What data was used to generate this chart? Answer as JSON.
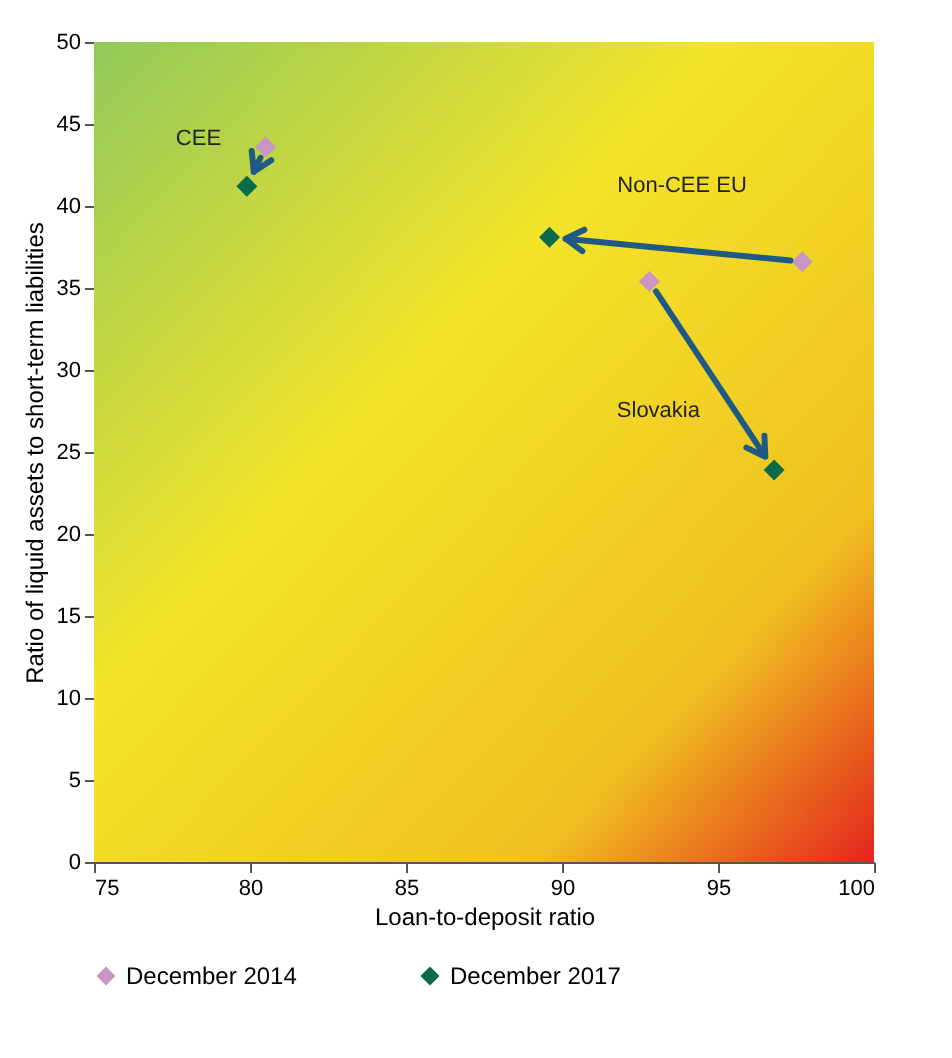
{
  "chart_data": {
    "type": "scatter",
    "xlabel": "Loan-to-deposit ratio",
    "ylabel": "Ratio of liquid assets to short-term liabilities",
    "series": [
      {
        "name": "December 2014",
        "color": "#c895c4",
        "x": [
          80.5,
          97.7,
          92.8
        ],
        "values": [
          43.6,
          36.6,
          35.4
        ]
      },
      {
        "name": "December 2017",
        "color": "#0a6b4b",
        "x": [
          79.9,
          89.6,
          96.8
        ],
        "values": [
          41.2,
          38.1,
          23.9
        ]
      }
    ],
    "annotations": [
      "CEE",
      "Non-CEE EU",
      "Slovakia"
    ],
    "xlim": [
      75,
      100
    ],
    "xticks": [
      75,
      80,
      85,
      90,
      95,
      100
    ],
    "ylim": [
      0,
      50
    ],
    "yticks": [
      0,
      5,
      10,
      15,
      20,
      25,
      30,
      35,
      40,
      45,
      50
    ],
    "grid": false,
    "legend": "bottom",
    "marker": "diamond"
  }
}
